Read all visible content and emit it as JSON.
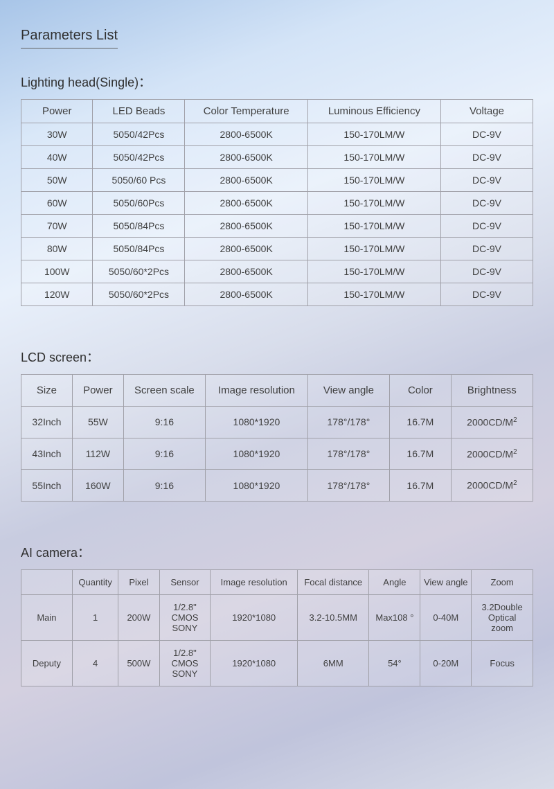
{
  "page_title": "Parameters List",
  "background_gradient": [
    "#a8c5e8",
    "#d4e4f7",
    "#e8f0fb",
    "#d8ddeb",
    "#c8cce0",
    "#d4d0e0",
    "#c0c4dc",
    "#d8dce8"
  ],
  "text_color": "#404040",
  "border_color": "#a0a0a8",
  "lighting": {
    "title": "Lighting head(Single)：",
    "columns": [
      "Power",
      "LED Beads",
      "Color Temperature",
      "Luminous Efficiency",
      "Voltage"
    ],
    "rows": [
      [
        "30W",
        "5050/42Pcs",
        "2800-6500K",
        "150-170LM/W",
        "DC-9V"
      ],
      [
        "40W",
        "5050/42Pcs",
        "2800-6500K",
        "150-170LM/W",
        "DC-9V"
      ],
      [
        "50W",
        "5050/60 Pcs",
        "2800-6500K",
        "150-170LM/W",
        "DC-9V"
      ],
      [
        "60W",
        "5050/60Pcs",
        "2800-6500K",
        "150-170LM/W",
        "DC-9V"
      ],
      [
        "70W",
        "5050/84Pcs",
        "2800-6500K",
        "150-170LM/W",
        "DC-9V"
      ],
      [
        "80W",
        "5050/84Pcs",
        "2800-6500K",
        "150-170LM/W",
        "DC-9V"
      ],
      [
        "100W",
        "5050/60*2Pcs",
        "2800-6500K",
        "150-170LM/W",
        "DC-9V"
      ],
      [
        "120W",
        "5050/60*2Pcs",
        "2800-6500K",
        "150-170LM/W",
        "DC-9V"
      ]
    ],
    "col_widths": [
      "14%",
      "18%",
      "24%",
      "26%",
      "18%"
    ]
  },
  "lcd": {
    "title": "LCD screen：",
    "columns": [
      "Size",
      "Power",
      "Screen scale",
      "Image resolution",
      "View angle",
      "Color",
      "Brightness"
    ],
    "rows": [
      [
        "32Inch",
        "55W",
        "9:16",
        "1080*1920",
        "178°/178°",
        "16.7M",
        "2000CD/M²"
      ],
      [
        "43Inch",
        "112W",
        "9:16",
        "1080*1920",
        "178°/178°",
        "16.7M",
        "2000CD/M²"
      ],
      [
        "55Inch",
        "160W",
        "9:16",
        "1080*1920",
        "178°/178°",
        "16.7M",
        "2000CD/M²"
      ]
    ],
    "col_widths": [
      "10%",
      "10%",
      "16%",
      "20%",
      "16%",
      "12%",
      "16%"
    ]
  },
  "camera": {
    "title": "AI camera：",
    "columns": [
      "",
      "Quantity",
      "Pixel",
      "Sensor",
      "Image resolution",
      "Focal distance",
      "Angle",
      "View angle",
      "Zoom"
    ],
    "rows": [
      [
        "Main",
        "1",
        "200W",
        "1/2.8\" CMOS SONY",
        "1920*1080",
        "3.2-10.5MM",
        "Max108 °",
        "0-40M",
        "3.2Double Optical zoom"
      ],
      [
        "Deputy",
        "4",
        "500W",
        "1/2.8\" CMOS SONY",
        "1920*1080",
        "6MM",
        "54°",
        "0-20M",
        "Focus"
      ]
    ],
    "col_widths": [
      "10%",
      "9%",
      "8%",
      "10%",
      "17%",
      "14%",
      "10%",
      "10%",
      "12%"
    ]
  }
}
